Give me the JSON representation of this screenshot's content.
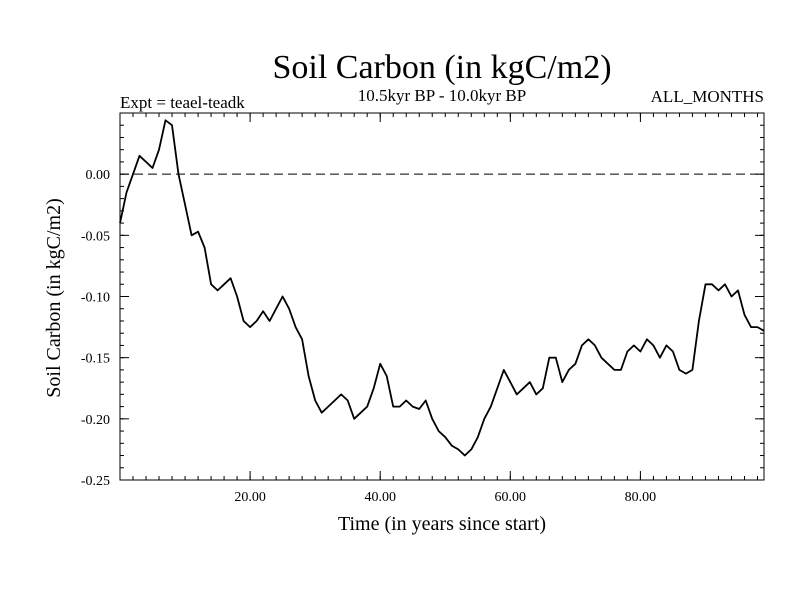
{
  "chart_data": {
    "type": "line",
    "title": "Soil Carbon (in kgC/m2)",
    "subtitle": "10.5kyr BP - 10.0kyr BP",
    "experiment": "Expt = teael-teadk",
    "months": "ALL_MONTHS",
    "xlabel": "Time (in years since start)",
    "ylabel": "Soil Carbon (in kgC/m2)",
    "xlim": [
      0,
      99
    ],
    "ylim": [
      -0.25,
      0.05
    ],
    "xticks": [
      20,
      40,
      60,
      80
    ],
    "xtick_labels": [
      "20.00",
      "40.00",
      "60.00",
      "80.00"
    ],
    "yticks": [
      0.0,
      -0.05,
      -0.1,
      -0.15,
      -0.2,
      -0.25
    ],
    "ytick_labels": [
      "0.00",
      "-0.05",
      "-0.10",
      "-0.15",
      "-0.20",
      "-0.25"
    ],
    "reference_line": {
      "y": 0.0,
      "style": "dashed"
    },
    "series": [
      {
        "name": "teael-teadk",
        "color": "#000000",
        "x": [
          0,
          1,
          2,
          3,
          4,
          5,
          6,
          7,
          8,
          9,
          10,
          11,
          12,
          13,
          14,
          15,
          16,
          17,
          18,
          19,
          20,
          21,
          22,
          23,
          24,
          25,
          26,
          27,
          28,
          29,
          30,
          31,
          32,
          33,
          34,
          35,
          36,
          37,
          38,
          39,
          40,
          41,
          42,
          43,
          44,
          45,
          46,
          47,
          48,
          49,
          50,
          51,
          52,
          53,
          54,
          55,
          56,
          57,
          58,
          59,
          60,
          61,
          62,
          63,
          64,
          65,
          66,
          67,
          68,
          69,
          70,
          71,
          72,
          73,
          74,
          75,
          76,
          77,
          78,
          79,
          80,
          81,
          82,
          83,
          84,
          85,
          86,
          87,
          88,
          89,
          90,
          91,
          92,
          93,
          94,
          95,
          96,
          97,
          98,
          99
        ],
        "y": [
          -0.04,
          -0.015,
          0.0,
          0.015,
          0.01,
          0.005,
          0.02,
          0.044,
          0.04,
          0.0,
          -0.025,
          -0.05,
          -0.047,
          -0.06,
          -0.09,
          -0.095,
          -0.09,
          -0.085,
          -0.1,
          -0.12,
          -0.125,
          -0.12,
          -0.112,
          -0.12,
          -0.11,
          -0.1,
          -0.11,
          -0.125,
          -0.135,
          -0.165,
          -0.185,
          -0.195,
          -0.19,
          -0.185,
          -0.18,
          -0.185,
          -0.2,
          -0.195,
          -0.19,
          -0.175,
          -0.155,
          -0.165,
          -0.19,
          -0.19,
          -0.185,
          -0.19,
          -0.192,
          -0.185,
          -0.2,
          -0.21,
          -0.215,
          -0.222,
          -0.225,
          -0.23,
          -0.225,
          -0.215,
          -0.2,
          -0.19,
          -0.175,
          -0.16,
          -0.17,
          -0.18,
          -0.175,
          -0.17,
          -0.18,
          -0.175,
          -0.15,
          -0.15,
          -0.17,
          -0.16,
          -0.155,
          -0.14,
          -0.135,
          -0.14,
          -0.15,
          -0.155,
          -0.16,
          -0.16,
          -0.145,
          -0.14,
          -0.145,
          -0.135,
          -0.14,
          -0.15,
          -0.14,
          -0.145,
          -0.16,
          -0.163,
          -0.16,
          -0.12,
          -0.09,
          -0.09,
          -0.095,
          -0.09,
          -0.1,
          -0.095,
          -0.115,
          -0.125,
          -0.125,
          -0.128
        ]
      }
    ]
  }
}
